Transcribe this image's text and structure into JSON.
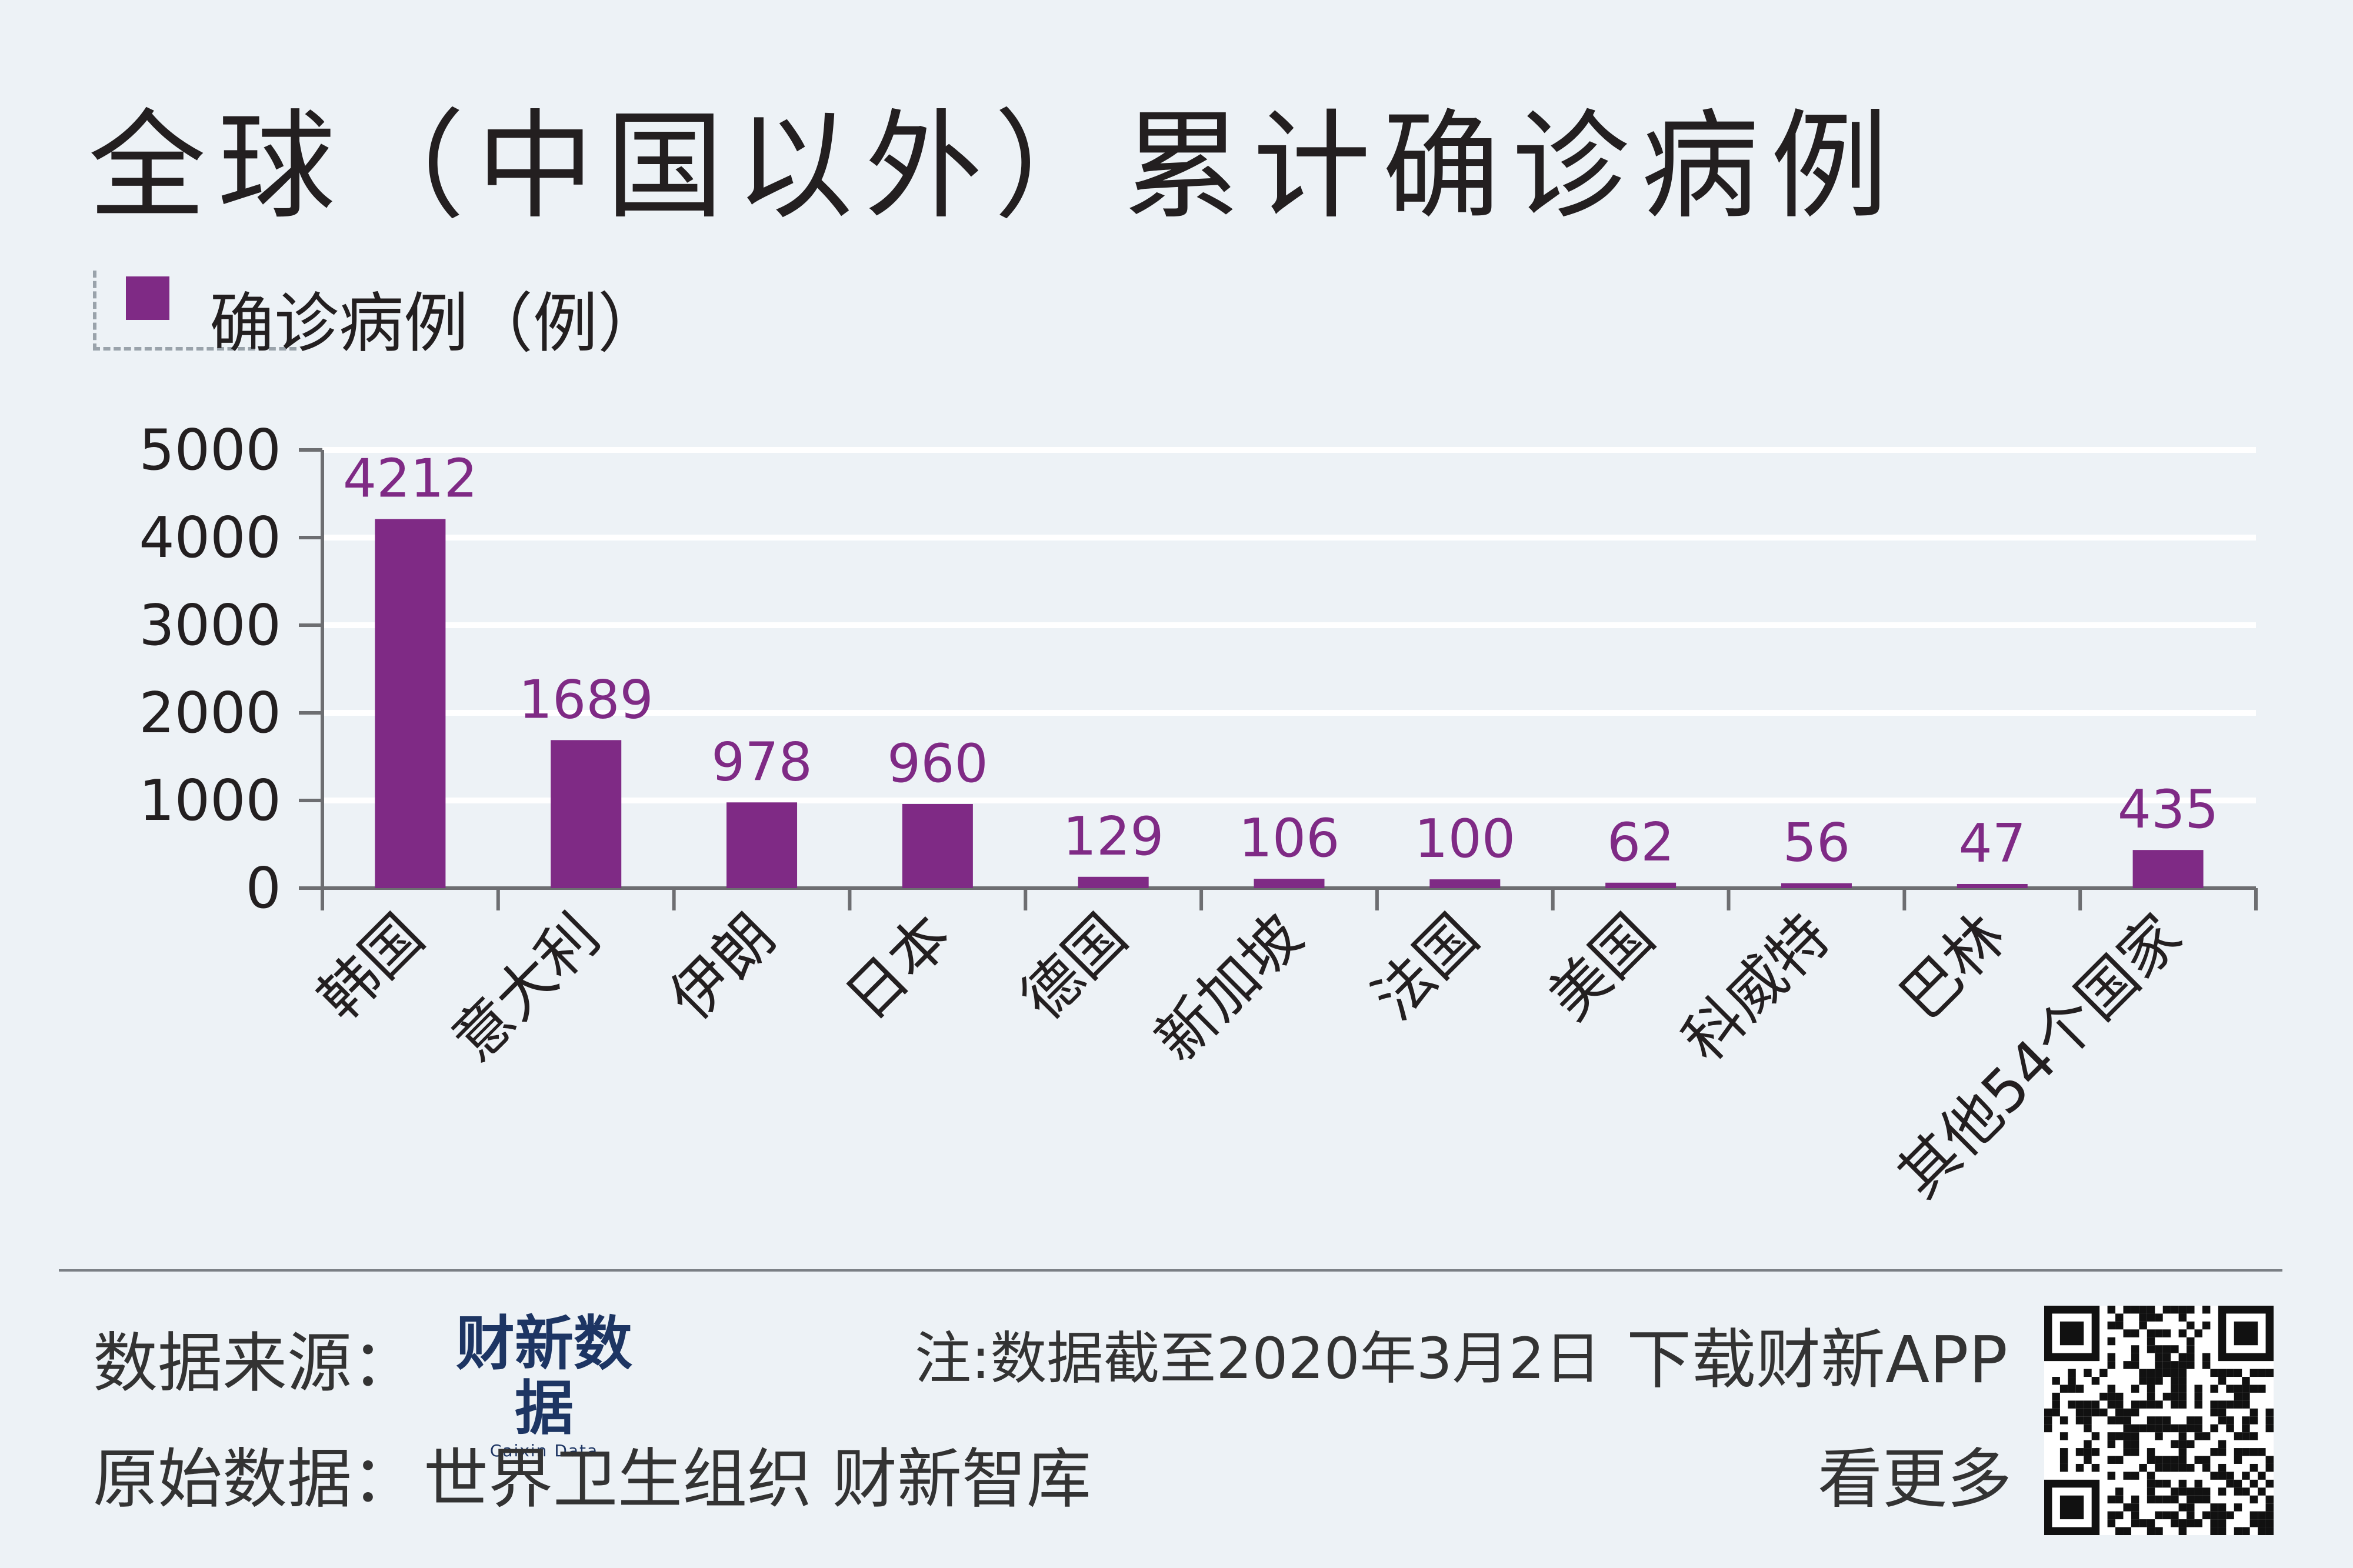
{
  "title": "全球（中国以外）累计确诊病例",
  "legend": {
    "label": "确诊病例（例）"
  },
  "colors": {
    "bar": "#7f2a85",
    "label": "#7f2a85",
    "axis": "#6d6e71",
    "grid": "#ffffff"
  },
  "chart_data": {
    "type": "bar",
    "categories": [
      "韩国",
      "意大利",
      "伊朗",
      "日本",
      "德国",
      "新加坡",
      "法国",
      "美国",
      "科威特",
      "巴林",
      "其他54个国家"
    ],
    "series": [
      {
        "name": "确诊病例（例）",
        "values": [
          4212,
          1689,
          978,
          960,
          129,
          106,
          100,
          62,
          56,
          47,
          435
        ]
      }
    ],
    "ylim": [
      0,
      5000
    ],
    "yticks": [
      0,
      1000,
      2000,
      3000,
      4000,
      5000
    ],
    "grid": true,
    "data_labels": true,
    "legend_position": "top-left"
  },
  "footer": {
    "source_label": "数据来源：",
    "brand_cn": "财新数据",
    "brand_en": "Caixin Data",
    "note": "注:数据截至2020年3月2日",
    "download": "下载财新APP",
    "original_label": "原始数据：",
    "original_sources": "世界卫生组织 财新智库",
    "more": "看更多"
  },
  "qr": {
    "icon": "qr-code-icon"
  }
}
